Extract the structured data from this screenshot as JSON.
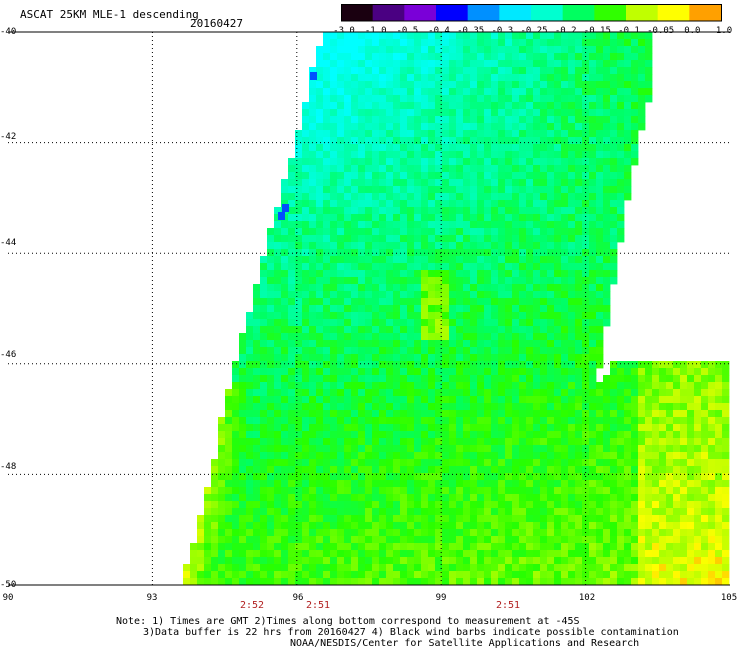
{
  "header": {
    "title": "ASCAT 25KM MLE-1 descending",
    "date": "20160427"
  },
  "colorbar": {
    "labels": [
      "-3.0",
      "-1.0",
      "-0.5",
      "-0.4",
      "-0.35",
      "-0.3",
      "-0.25",
      "-0.2",
      "-0.15",
      "-0.1",
      "-0.05",
      "0.0",
      "1.0"
    ],
    "colors": [
      "#1a0010",
      "#4a0082",
      "#7a00d8",
      "#0000ff",
      "#0090ff",
      "#00e8ff",
      "#00ffd0",
      "#00ff60",
      "#30ff00",
      "#c0ff00",
      "#ffff00",
      "#ffa000",
      "#ff2000"
    ]
  },
  "map": {
    "lat_labels": [
      "-40",
      "-42",
      "-44",
      "-46",
      "-48",
      "-50"
    ],
    "lon_labels": [
      "90",
      "93",
      "96",
      "99",
      "102",
      "105"
    ],
    "lat_range": [
      -40,
      -50
    ],
    "lon_range": [
      90,
      105
    ]
  },
  "times": [
    "2:52",
    "2:51",
    "2:51"
  ],
  "notes": [
    "Note: 1) Times are GMT 2)Times along bottom correspond to measurement at -45S",
    "3)Data buffer is 22 hrs from 20160427 4) Black wind barbs indicate possible contamination",
    "NOAA/NESDIS/Center for Satellite Applications and Research"
  ]
}
